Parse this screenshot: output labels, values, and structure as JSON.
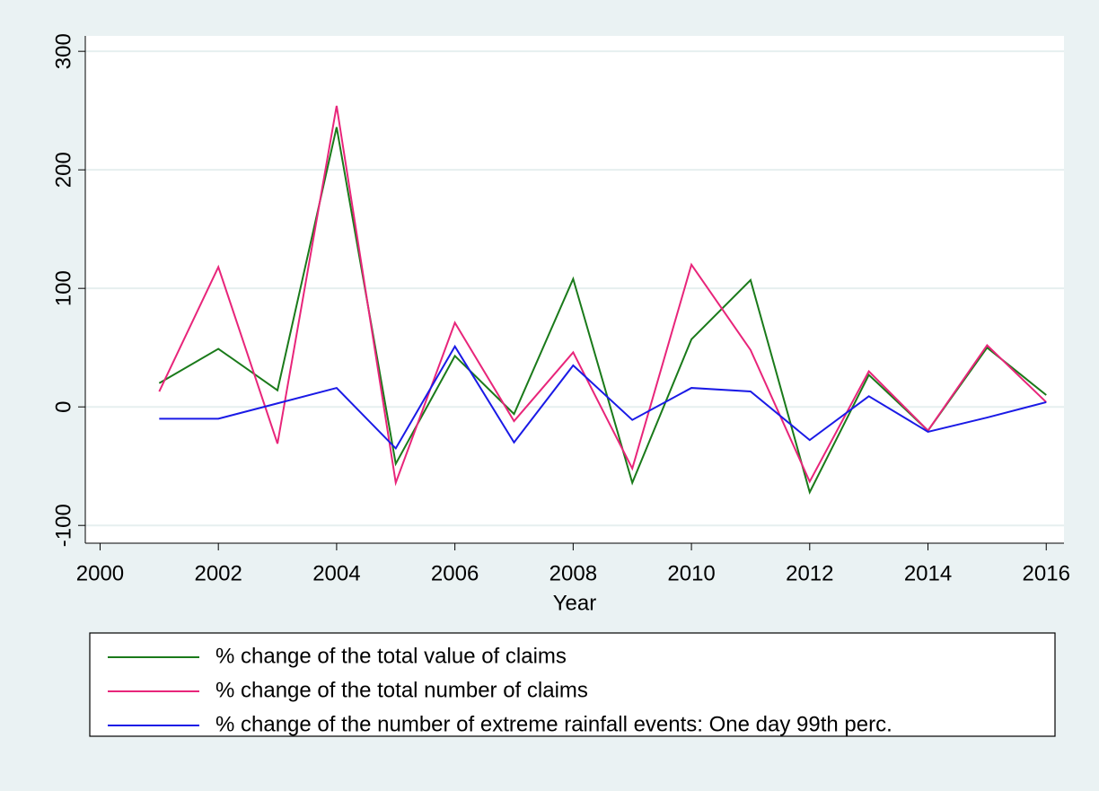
{
  "chart_data": {
    "type": "line",
    "x_label": "Year",
    "x": [
      2001,
      2002,
      2003,
      2004,
      2005,
      2006,
      2007,
      2008,
      2009,
      2010,
      2011,
      2012,
      2013,
      2014,
      2015,
      2016
    ],
    "series": [
      {
        "name": "% change of the total value of claims",
        "color": "#1a7a1a",
        "values": [
          20,
          49,
          14,
          236,
          -48,
          43,
          -6,
          108,
          -64,
          57,
          107,
          -72,
          27,
          -20,
          50,
          10
        ]
      },
      {
        "name": "% change of the total number of claims",
        "color": "#e8257a",
        "values": [
          13,
          118,
          -31,
          254,
          -64,
          71,
          -12,
          46,
          -52,
          120,
          48,
          -63,
          30,
          -20,
          52,
          4
        ]
      },
      {
        "name": "% change of the number of extreme rainfall events: One day 99th perc.",
        "color": "#1a1ae6",
        "values": [
          -10,
          -10,
          3,
          16,
          -35,
          51,
          -30,
          35,
          -11,
          16,
          13,
          -28,
          9,
          -21,
          -9,
          4
        ]
      }
    ],
    "xlim": [
      1999.75,
      2016.3
    ],
    "xticks": [
      2000,
      2002,
      2004,
      2006,
      2008,
      2010,
      2012,
      2014,
      2016
    ],
    "ylim": [
      -115,
      313
    ],
    "yticks": [
      -100,
      0,
      100,
      200,
      300
    ],
    "grid": true
  }
}
